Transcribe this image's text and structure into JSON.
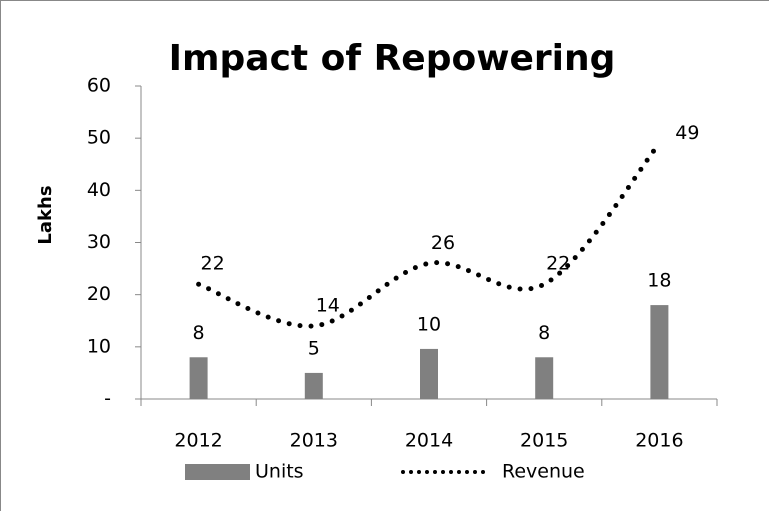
{
  "chart_data": {
    "type": "combo",
    "title": "Impact of Repowering",
    "y_label": "Lakhs",
    "categories": [
      "2012",
      "2013",
      "2014",
      "2015",
      "2016"
    ],
    "series": [
      {
        "name": "Units",
        "type": "bar",
        "color": "#808080",
        "values": [
          8,
          5,
          9.6,
          8,
          18
        ],
        "value_labels": [
          "8",
          "5",
          "10",
          "8",
          "18"
        ]
      },
      {
        "name": "Revenue",
        "type": "line",
        "color": "#000000",
        "values": [
          22,
          14,
          26,
          22,
          49
        ]
      }
    ],
    "ylim": [
      0,
      60
    ],
    "yticks": [
      {
        "value": 0,
        "label": "-"
      },
      10,
      20,
      30,
      40,
      50,
      60
    ],
    "legend": "bottom"
  }
}
